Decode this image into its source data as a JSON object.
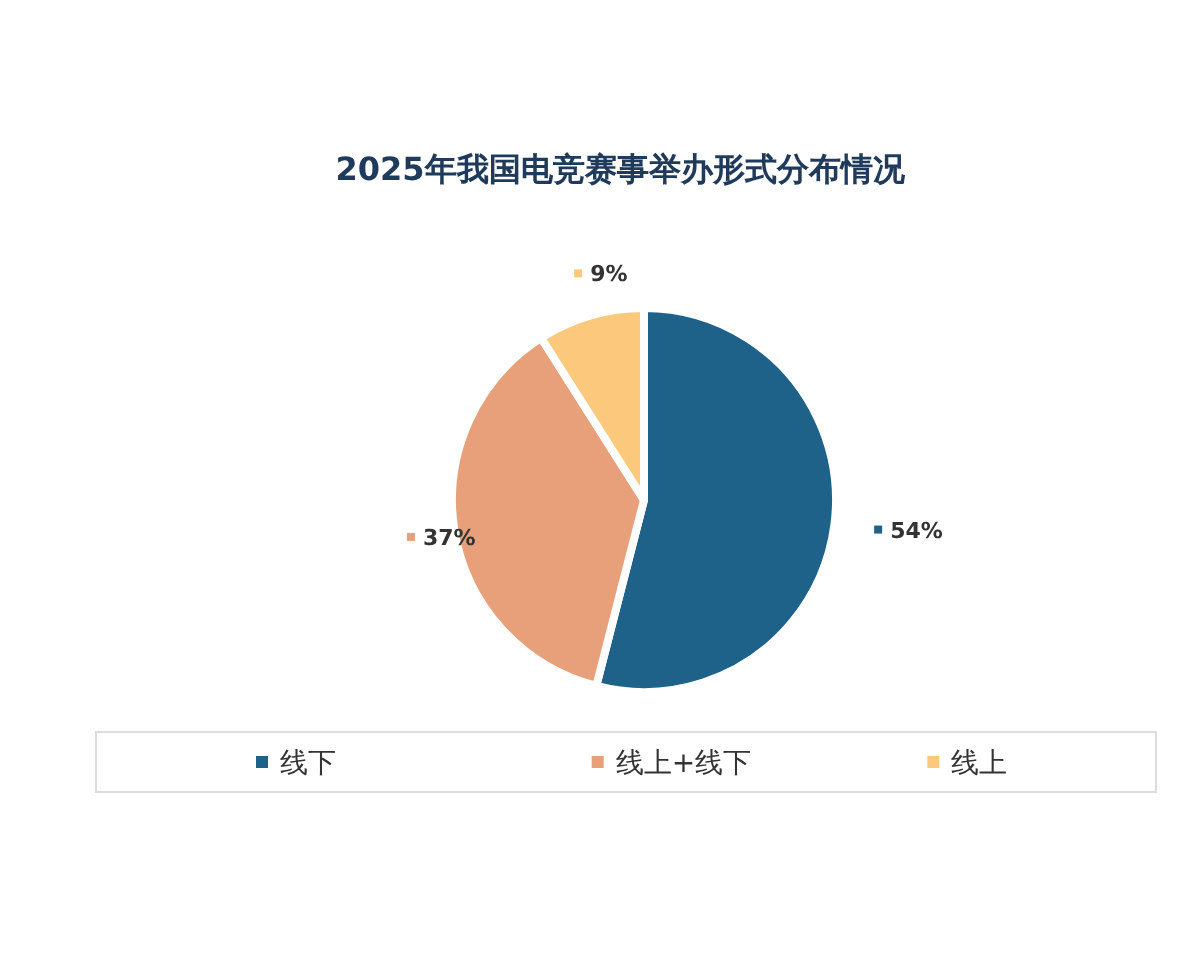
{
  "chart_data": {
    "type": "pie",
    "title": "2025年我国电竞赛事举办形式分布情况",
    "categories": [
      "线下",
      "线上+线下",
      "线上"
    ],
    "values": [
      54,
      37,
      9
    ],
    "colors": [
      "#1e6189",
      "#e8a07a",
      "#fcc87c"
    ],
    "value_labels": [
      "54%",
      "37%",
      "9%"
    ],
    "legend": "bottom"
  }
}
